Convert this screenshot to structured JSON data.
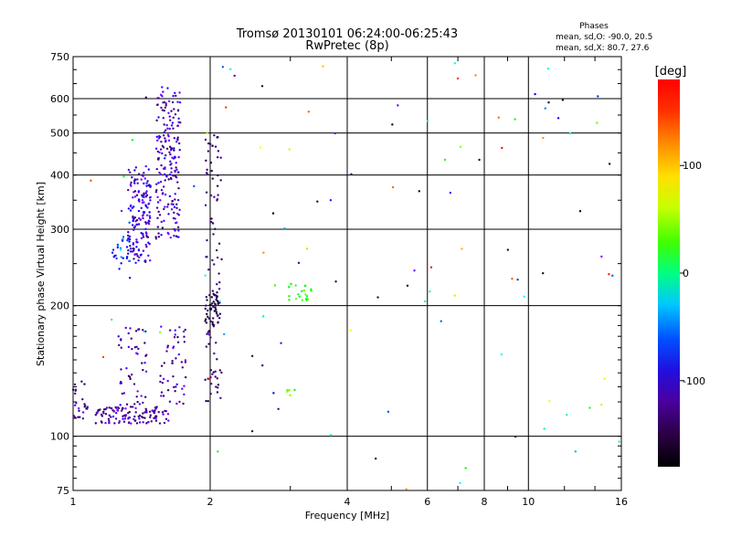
{
  "chart_data": {
    "type": "scatter",
    "title": "Tromsø 20130101 06:24:00-06:25:43",
    "subtitle": "RwPretec (8p)",
    "xlabel": "Frequency [MHz]",
    "ylabel": "Stationary phase Virtual Height [km]",
    "x_scale": "log",
    "y_scale": "log",
    "xlim": [
      1,
      16
    ],
    "ylim": [
      75,
      750
    ],
    "x_ticks": [
      "1",
      "2",
      "4",
      "6",
      "8",
      "10",
      "16"
    ],
    "y_ticks": [
      "75",
      "100",
      "200",
      "300",
      "400",
      "500",
      "600",
      "750"
    ],
    "grid": true,
    "annotation": {
      "heading": "Phases",
      "line1": "mean, sd,O: -90.0, 20.5",
      "line2": "mean, sd,X:  80.7, 27.6"
    },
    "colorbar": {
      "label": "[deg]",
      "range": [
        -180,
        180
      ],
      "ticks": [
        "100",
        "0",
        "-100"
      ],
      "colormap": "rainbow (black-purple-blue-cyan-green-yellow-red)"
    },
    "point_clusters": [
      {
        "x_range": [
          1.32,
          1.48
        ],
        "y_range": [
          250,
          420
        ],
        "phase": -80,
        "n": 160
      },
      {
        "x_range": [
          1.52,
          1.72
        ],
        "y_range": [
          285,
          640
        ],
        "phase": -90,
        "n": 190
      },
      {
        "x_range": [
          1.22,
          1.34
        ],
        "y_range": [
          240,
          290
        ],
        "phase": -50,
        "n": 25
      },
      {
        "x_range": [
          1.12,
          1.62
        ],
        "y_range": [
          107,
          117
        ],
        "phase": -100,
        "n": 120
      },
      {
        "x_range": [
          1.0,
          1.08
        ],
        "y_range": [
          108,
          135
        ],
        "phase": -100,
        "n": 25
      },
      {
        "x_range": [
          1.25,
          1.45
        ],
        "y_range": [
          118,
          180
        ],
        "phase": -95,
        "n": 50
      },
      {
        "x_range": [
          1.55,
          1.78
        ],
        "y_range": [
          118,
          180
        ],
        "phase": -95,
        "n": 50
      },
      {
        "x_range": [
          1.95,
          2.1
        ],
        "y_range": [
          180,
          215
        ],
        "phase": -140,
        "n": 45
      },
      {
        "x_range": [
          1.95,
          2.12
        ],
        "y_range": [
          120,
          500
        ],
        "phase": -115,
        "n": 90
      },
      {
        "x_range": [
          2.95,
          3.35
        ],
        "y_range": [
          205,
          225
        ],
        "phase": 60,
        "n": 20
      },
      {
        "x_range": [
          2.95,
          3.1
        ],
        "y_range": [
          123,
          128
        ],
        "phase": 80,
        "n": 8
      }
    ]
  }
}
